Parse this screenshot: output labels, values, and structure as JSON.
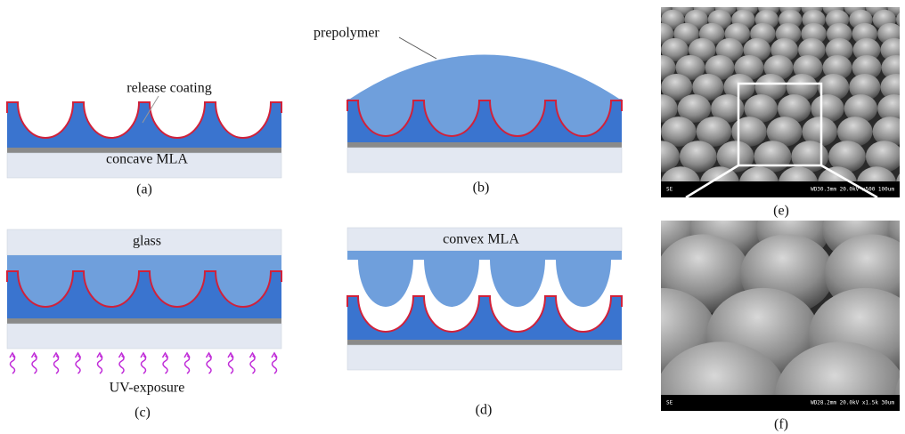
{
  "panel_a": {
    "caption": "(a)",
    "callout": "release coating",
    "layer": "concave MLA"
  },
  "panel_b": {
    "caption": "(b)",
    "callout": "prepolymer"
  },
  "panel_c": {
    "caption": "(c)",
    "layer": "glass",
    "callout": "UV-exposure"
  },
  "panel_d": {
    "caption": "(d)",
    "layer": "convex MLA"
  },
  "panel_e": {
    "caption": "(e)",
    "detector": "SE",
    "info": "WD30.3mm 20.0kV x500   100um"
  },
  "panel_f": {
    "caption": "(f)",
    "detector": "SE",
    "info": "WD28.2mm 20.0kV x1.5k   30um"
  }
}
